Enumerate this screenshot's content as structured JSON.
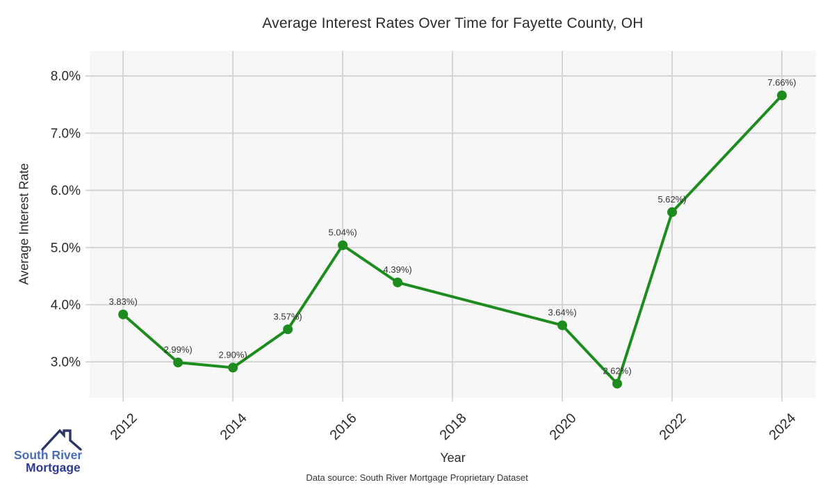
{
  "chart_data": {
    "type": "line",
    "title": "Average Interest Rates Over Time for Fayette County, OH",
    "xlabel": "Year",
    "ylabel": "Average Interest Rate",
    "x": [
      2012,
      2013,
      2014,
      2015,
      2016,
      2017,
      2020,
      2021,
      2022,
      2024
    ],
    "values": [
      3.83,
      2.99,
      2.9,
      3.57,
      5.04,
      4.39,
      3.64,
      2.62,
      5.62,
      7.66
    ],
    "point_labels": [
      "3.83%)",
      "2.99%)",
      "2.90%)",
      "3.57%)",
      "5.04%)",
      "4.39%)",
      "3.64%)",
      "2.62%)",
      "5.62%)",
      "7.66%)"
    ],
    "xticks": [
      2012,
      2014,
      2016,
      2018,
      2020,
      2022,
      2024
    ],
    "xtick_labels": [
      "2012",
      "2014",
      "2016",
      "2018",
      "2020",
      "2022",
      "2024"
    ],
    "yticks": [
      3,
      4,
      5,
      6,
      7,
      8
    ],
    "ytick_labels": [
      "3.0%",
      "4.0%",
      "5.0%",
      "6.0%",
      "7.0%",
      "8.0%"
    ],
    "xlim": [
      2011.39,
      2024.62
    ],
    "ylim": [
      2.37,
      8.44
    ],
    "grid": true,
    "legend": "none",
    "line_color": "#1e8b1e",
    "plot_bg": "#f7f7f7",
    "grid_color": "#d2d2d2",
    "text_color": "#2b2b2b",
    "point_label_color": "#333333"
  },
  "caption": "Data source: South River Mortgage Proprietary Dataset",
  "logo": {
    "line1": "South River",
    "line2": "Mortgage",
    "line1_color": "#4a6cb3",
    "line2_color": "#2e3a8c",
    "roof_color": "#2b3566"
  }
}
